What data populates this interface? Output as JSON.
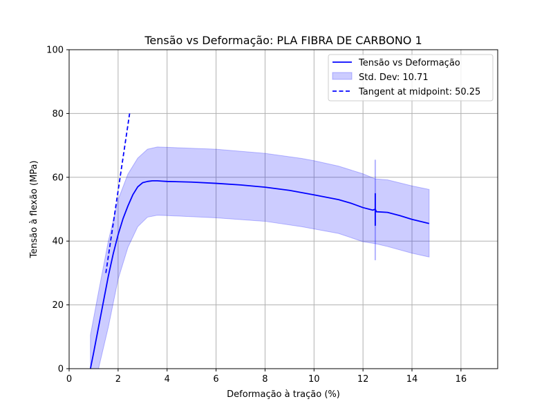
{
  "chart_data": {
    "type": "line",
    "title": "Tensão vs Deformação: PLA FIBRA DE CARBONO 1",
    "xlabel": "Deformação à tração (%)",
    "ylabel": "Tensão à flexão (MPa)",
    "xlim": [
      0,
      17.5
    ],
    "ylim": [
      0,
      100
    ],
    "xticks": [
      0,
      2,
      4,
      6,
      8,
      10,
      12,
      14,
      16
    ],
    "yticks": [
      0,
      20,
      40,
      60,
      80,
      100
    ],
    "xtick_labels": [
      "0",
      "2",
      "4",
      "6",
      "8",
      "10",
      "12",
      "14",
      "16"
    ],
    "ytick_labels": [
      "0",
      "20",
      "40",
      "60",
      "80",
      "100"
    ],
    "grid": true,
    "legend_position": "top-right",
    "colors": {
      "line": "#0000ff",
      "band": "#0000ff",
      "grid": "#b0b0b0"
    },
    "series": [
      {
        "name": "Tensão vs Deformação",
        "style": "solid",
        "x": [
          0.87,
          1.0,
          1.2,
          1.4,
          1.6,
          1.8,
          2.0,
          2.2,
          2.4,
          2.6,
          2.8,
          3.0,
          3.2,
          3.4,
          3.6,
          3.8,
          4.0,
          5.0,
          6.0,
          7.0,
          8.0,
          9.0,
          9.5,
          10.0,
          11.0,
          11.5,
          12.0,
          12.4,
          12.5,
          12.55,
          13.0,
          13.5,
          14.0,
          14.7
        ],
        "y": [
          0,
          5,
          13,
          21,
          29,
          36,
          42,
          47,
          51,
          54.5,
          57,
          58.3,
          58.7,
          58.9,
          58.9,
          58.8,
          58.7,
          58.5,
          58.1,
          57.6,
          56.9,
          55.9,
          55.2,
          54.5,
          53.0,
          51.9,
          50.5,
          49.7,
          50.0,
          49.2,
          49.0,
          48.0,
          46.8,
          45.5
        ]
      },
      {
        "name": "Tangent at midpoint: 50.25",
        "style": "dashed",
        "x": [
          1.5,
          2.47
        ],
        "y": [
          30,
          80
        ]
      }
    ],
    "band": {
      "name": "Std. Dev: 10.71",
      "x": [
        0.87,
        1.2,
        1.6,
        2.0,
        2.4,
        2.8,
        3.2,
        3.6,
        4.0,
        6.0,
        8.0,
        9.5,
        10.0,
        11.0,
        12.0,
        12.5,
        13.0,
        14.0,
        14.7
      ],
      "upper": [
        10.5,
        24,
        40,
        53,
        61,
        66,
        68.8,
        69.5,
        69.4,
        68.8,
        67.5,
        65.9,
        65.2,
        63.5,
        61.1,
        59.5,
        59.2,
        57.3,
        56.2
      ],
      "lower": [
        0,
        0,
        13,
        28,
        38,
        44.5,
        47.5,
        48.1,
        48.0,
        47.3,
        46.2,
        44.5,
        43.8,
        42.4,
        39.8,
        39.2,
        38.3,
        36.2,
        35.0
      ]
    },
    "spike": {
      "x": 12.5,
      "line_range": [
        44.8,
        55.0
      ],
      "band_range": [
        34.0,
        65.5
      ]
    }
  }
}
